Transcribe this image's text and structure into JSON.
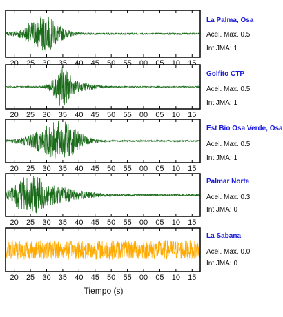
{
  "chart_data": {
    "type": "line",
    "xlabel": "Tiempo (s)",
    "x_ticks": [
      "20",
      "25",
      "30",
      "35",
      "40",
      "45",
      "50",
      "55",
      "00",
      "05",
      "10",
      "15"
    ],
    "panels": [
      {
        "station": "La Palma, Osa",
        "acel": "Acel. Max. 0.5",
        "jma": "Int JMA: 1",
        "color": "#1a6b1a",
        "noise": 0.04,
        "bursts": [
          [
            29.5,
            0.85,
            4.5
          ]
        ]
      },
      {
        "station": "Golfito CTP",
        "acel": "Acel. Max. 0.5",
        "jma": "Int JMA: 1",
        "color": "#1a6b1a",
        "noise": 0.03,
        "bursts": [
          [
            35,
            0.9,
            2.2
          ],
          [
            40,
            0.2,
            5
          ]
        ]
      },
      {
        "station": "Est Bio Osa Verde, Osa",
        "acel": "Acel. Max. 0.5",
        "jma": "Int JMA: 1",
        "color": "#1a6b1a",
        "noise": 0.04,
        "bursts": [
          [
            28,
            0.2,
            6
          ],
          [
            35,
            0.95,
            5
          ]
        ]
      },
      {
        "station": "Palmar Norte",
        "acel": "Acel. Max. 0.3",
        "jma": "Int JMA: 0",
        "color": "#1a6b1a",
        "noise": 0.05,
        "bursts": [
          [
            25,
            0.95,
            3.5
          ],
          [
            33,
            0.4,
            8
          ]
        ]
      },
      {
        "station": "La Sabana",
        "acel": "Acel. Max. 0.0",
        "jma": "Int JMA: 0",
        "color": "#ffaa00",
        "noise": 0.5,
        "bursts": []
      }
    ]
  }
}
